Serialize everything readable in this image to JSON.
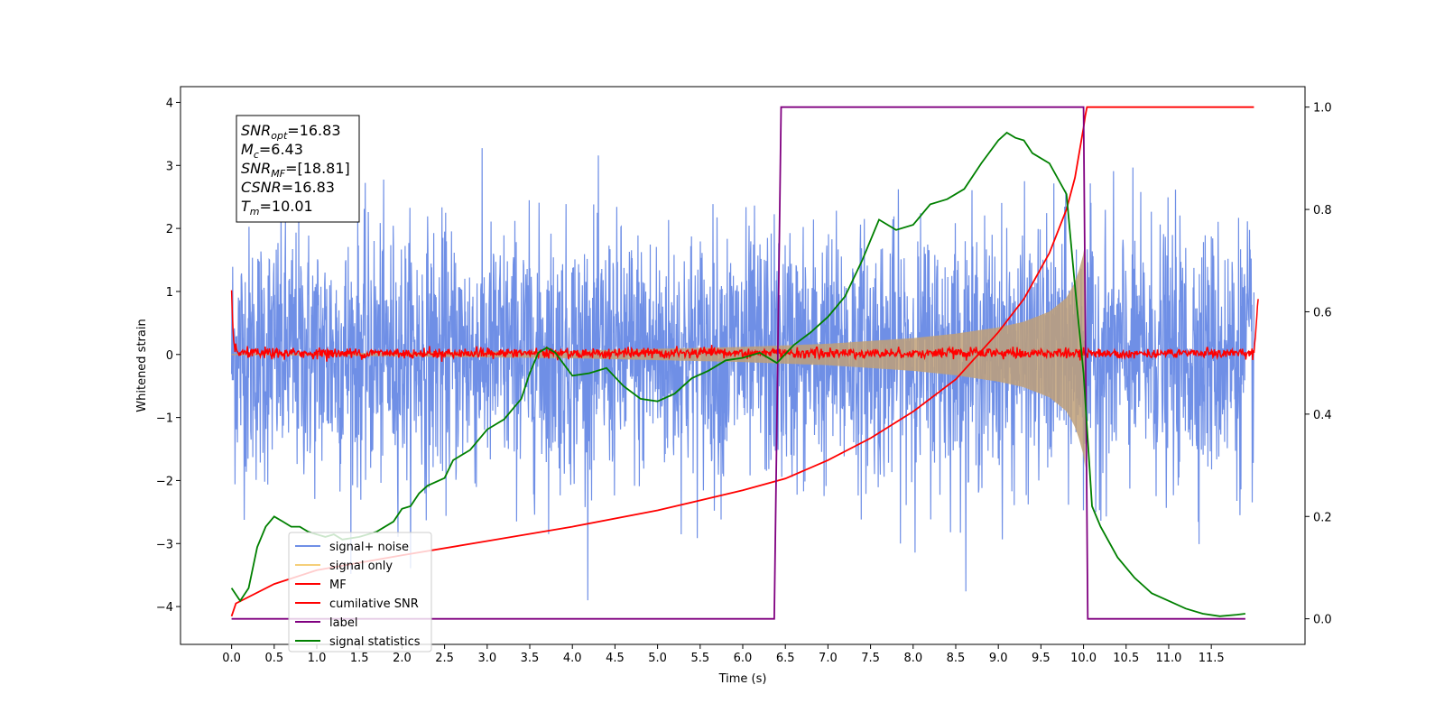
{
  "chart_data": {
    "type": "line",
    "xlabel": "Time (s)",
    "ylabel_left": "Whitened strain",
    "xlim": [
      -0.6,
      12.6
    ],
    "ylim_left": [
      -4.6,
      4.25
    ],
    "ylim_right": [
      -0.05,
      1.04
    ],
    "x_ticks": [
      "0.0",
      "0.5",
      "1.0",
      "1.5",
      "2.0",
      "2.5",
      "3.0",
      "3.5",
      "4.0",
      "4.5",
      "5.0",
      "5.5",
      "6.0",
      "6.5",
      "7.0",
      "7.5",
      "8.0",
      "8.5",
      "9.0",
      "9.5",
      "10.0",
      "10.5",
      "11.0",
      "11.5"
    ],
    "x_tick_values": [
      0,
      0.5,
      1,
      1.5,
      2,
      2.5,
      3,
      3.5,
      4,
      4.5,
      5,
      5.5,
      6,
      6.5,
      7,
      7.5,
      8,
      8.5,
      9,
      9.5,
      10,
      10.5,
      11,
      11.5
    ],
    "y_left_ticks": [
      "4",
      "3",
      "2",
      "1",
      "0",
      "−1",
      "−2",
      "−3",
      "−4"
    ],
    "y_left_tick_values": [
      4,
      3,
      2,
      1,
      0,
      -1,
      -2,
      -3,
      -4
    ],
    "y_right_ticks": [
      "1.0",
      "0.8",
      "0.6",
      "0.4",
      "0.2",
      "0.0"
    ],
    "y_right_tick_values": [
      1.0,
      0.8,
      0.6,
      0.4,
      0.2,
      0.0
    ],
    "annotations": [
      {
        "base": "SNR",
        "sub": "opt",
        "value": "=16.83"
      },
      {
        "base": "M",
        "sub": "c",
        "value": "=6.43"
      },
      {
        "base": "SNR",
        "sub": "MF",
        "value": "=[18.81]"
      },
      {
        "base": "CSNR",
        "sub": "",
        "value": "=16.83"
      },
      {
        "base": "T",
        "sub": "m",
        "value": "=10.01"
      }
    ],
    "legend": {
      "placement": "lower-left",
      "entries": [
        {
          "label": "signal+ noise",
          "color": "#6f8fe6"
        },
        {
          "label": "signal only",
          "color": "#f5cf7a"
        },
        {
          "label": "MF",
          "color": "#ff0000"
        },
        {
          "label": "cumilative SNR",
          "color": "#ff0000"
        },
        {
          "label": "label",
          "color": "#800080"
        },
        {
          "label": "signal statistics",
          "color": "#008000"
        }
      ]
    },
    "series": [
      {
        "name": "signal+ noise",
        "axis": "left",
        "color": "#6f8fe6",
        "x_range": [
          0,
          12
        ],
        "noise_sigma": 1.0,
        "note_points": 3000
      },
      {
        "name": "signal only",
        "axis": "left",
        "color": "#c0a078",
        "x_range": [
          0,
          10.02
        ],
        "envelope": {
          "x": [
            0,
            2,
            4,
            6,
            7,
            8,
            8.5,
            9,
            9.3,
            9.6,
            9.8,
            9.9,
            9.95,
            10.0,
            10.02
          ],
          "amp": [
            0.01,
            0.03,
            0.06,
            0.12,
            0.17,
            0.26,
            0.33,
            0.43,
            0.52,
            0.68,
            0.9,
            1.15,
            1.35,
            1.6,
            1.8
          ]
        }
      },
      {
        "name": "MF",
        "axis": "left",
        "color": "#ff0000",
        "x": [
          0,
          0.02,
          0.05,
          12.0,
          12.02,
          12.05
        ],
        "y": [
          1.0,
          0.2,
          0.05,
          0.05,
          0.3,
          0.95
        ],
        "noise_sigma": 0.04
      },
      {
        "name": "cumilative SNR",
        "axis": "right",
        "color": "#ff0000",
        "x": [
          0,
          0.05,
          0.5,
          1,
          2,
          3,
          4,
          5,
          6,
          6.5,
          7,
          7.5,
          8,
          8.5,
          9,
          9.3,
          9.6,
          9.8,
          9.9,
          10.0,
          10.02,
          10.04,
          12.0
        ],
        "y": [
          0.005,
          0.03,
          0.068,
          0.095,
          0.124,
          0.152,
          0.18,
          0.212,
          0.251,
          0.274,
          0.31,
          0.353,
          0.405,
          0.468,
          0.56,
          0.625,
          0.715,
          0.8,
          0.862,
          0.96,
          0.983,
          1.0,
          1.0
        ]
      },
      {
        "name": "label",
        "axis": "right",
        "color": "#800080",
        "x": [
          0,
          6.37,
          6.45,
          10.0,
          10.05,
          11.9
        ],
        "y": [
          0.0,
          0.0,
          1.0,
          1.0,
          0.0,
          0.0
        ]
      },
      {
        "name": "signal statistics",
        "axis": "right",
        "color": "#008000",
        "x": [
          0,
          0.1,
          0.2,
          0.3,
          0.4,
          0.5,
          0.6,
          0.7,
          0.8,
          0.9,
          1.0,
          1.1,
          1.2,
          1.3,
          1.5,
          1.7,
          1.9,
          2.0,
          2.1,
          2.2,
          2.3,
          2.5,
          2.6,
          2.8,
          3.0,
          3.2,
          3.3,
          3.4,
          3.5,
          3.6,
          3.7,
          3.8,
          4.0,
          4.2,
          4.4,
          4.6,
          4.8,
          5.0,
          5.2,
          5.4,
          5.6,
          5.8,
          6.0,
          6.2,
          6.4,
          6.6,
          6.8,
          7.0,
          7.2,
          7.4,
          7.6,
          7.8,
          8.0,
          8.2,
          8.4,
          8.6,
          8.8,
          9.0,
          9.1,
          9.2,
          9.3,
          9.4,
          9.6,
          9.8,
          9.9,
          10.0,
          10.1,
          10.2,
          10.4,
          10.6,
          10.8,
          11.0,
          11.2,
          11.4,
          11.6,
          11.8,
          11.9
        ],
        "y": [
          0.06,
          0.035,
          0.06,
          0.14,
          0.18,
          0.2,
          0.19,
          0.18,
          0.18,
          0.17,
          0.165,
          0.16,
          0.165,
          0.155,
          0.16,
          0.17,
          0.19,
          0.215,
          0.22,
          0.245,
          0.26,
          0.275,
          0.31,
          0.33,
          0.37,
          0.39,
          0.41,
          0.43,
          0.48,
          0.52,
          0.53,
          0.52,
          0.475,
          0.48,
          0.49,
          0.455,
          0.43,
          0.425,
          0.44,
          0.47,
          0.485,
          0.505,
          0.51,
          0.52,
          0.5,
          0.535,
          0.56,
          0.59,
          0.63,
          0.7,
          0.78,
          0.76,
          0.77,
          0.81,
          0.82,
          0.84,
          0.89,
          0.935,
          0.95,
          0.94,
          0.935,
          0.91,
          0.89,
          0.83,
          0.65,
          0.48,
          0.22,
          0.18,
          0.12,
          0.08,
          0.05,
          0.035,
          0.02,
          0.01,
          0.005,
          0.008,
          0.01
        ]
      }
    ]
  }
}
